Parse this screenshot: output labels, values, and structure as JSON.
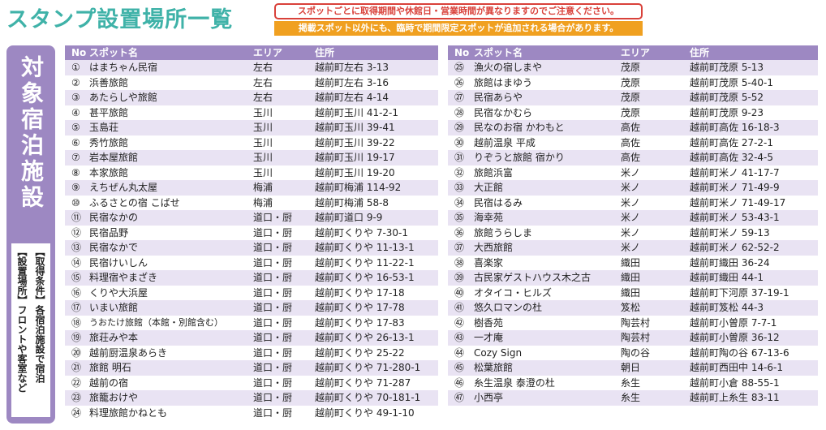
{
  "title": "スタンプ設置場所一覧",
  "notice": "スポットごとに取得期間や休館日・営業時間が異なりますのでご注意ください。",
  "banner": "掲載スポット以外にも、臨時で期間限定スポットが追加される場合があります。",
  "side": {
    "heading": "対象宿泊施設",
    "lines": [
      "【取得条件】各宿泊施設で宿泊",
      "【設置場所】フロントや客室など"
    ]
  },
  "tables": [
    {
      "header": [
        "No",
        "スポット名",
        "エリア",
        "住所"
      ],
      "rows": [
        [
          "①",
          "はまちゃん民宿",
          "左右",
          "越前町左右 3-13"
        ],
        [
          "②",
          "浜善旅館",
          "左右",
          "越前町左右 3-16"
        ],
        [
          "③",
          "あたらしや旅館",
          "左右",
          "越前町左右 4-14"
        ],
        [
          "④",
          "甚平旅館",
          "玉川",
          "越前町玉川 41-2-1"
        ],
        [
          "⑤",
          "玉島荘",
          "玉川",
          "越前町玉川 39-41"
        ],
        [
          "⑥",
          "秀竹旅館",
          "玉川",
          "越前町玉川 39-22"
        ],
        [
          "⑦",
          "岩本屋旅館",
          "玉川",
          "越前町玉川 19-17"
        ],
        [
          "⑧",
          "本家旅館",
          "玉川",
          "越前町玉川 19-20"
        ],
        [
          "⑨",
          "えちぜん丸太屋",
          "梅浦",
          "越前町梅浦 114-92"
        ],
        [
          "⑩",
          "ふるさとの宿 こばせ",
          "梅浦",
          "越前町梅浦 58-8"
        ],
        [
          "⑪",
          "民宿なかの",
          "道口・厨",
          "越前町道口 9-9"
        ],
        [
          "⑫",
          "民宿品野",
          "道口・厨",
          "越前町くりや 7-30-1"
        ],
        [
          "⑬",
          "民宿なかで",
          "道口・厨",
          "越前町くりや 11-13-1"
        ],
        [
          "⑭",
          "民宿けいしん",
          "道口・厨",
          "越前町くりや 11-22-1"
        ],
        [
          "⑮",
          "料理宿やまざき",
          "道口・厨",
          "越前町くりや 16-53-1"
        ],
        [
          "⑯",
          "くりや大浜屋",
          "道口・厨",
          "越前町くりや 17-18"
        ],
        [
          "⑰",
          "いまい旅館",
          "道口・厨",
          "越前町くりや 17-78"
        ],
        [
          "⑱",
          "うおたけ旅館（本館・別館含む）",
          "道口・厨",
          "越前町くりや 17-83"
        ],
        [
          "⑲",
          "旅荘みや本",
          "道口・厨",
          "越前町くりや 26-13-1"
        ],
        [
          "⑳",
          "越前厨温泉あらき",
          "道口・厨",
          "越前町くりや 25-22"
        ],
        [
          "㉑",
          "旅館 明石",
          "道口・厨",
          "越前町くりや 71-280-1"
        ],
        [
          "㉒",
          "越前の宿",
          "道口・厨",
          "越前町くりや 71-287"
        ],
        [
          "㉓",
          "旅籠おけや",
          "道口・厨",
          "越前町くりや 70-181-1"
        ],
        [
          "㉔",
          "料理旅館かねとも",
          "道口・厨",
          "越前町くりや 49-1-10"
        ]
      ]
    },
    {
      "header": [
        "No",
        "スポット名",
        "エリア",
        "住所"
      ],
      "rows": [
        [
          "㉕",
          "漁火の宿しまや",
          "茂原",
          "越前町茂原 5-13"
        ],
        [
          "㉖",
          "旅館はまゆう",
          "茂原",
          "越前町茂原 5-40-1"
        ],
        [
          "㉗",
          "民宿あらや",
          "茂原",
          "越前町茂原 5-52"
        ],
        [
          "㉘",
          "民宿なかむら",
          "茂原",
          "越前町茂原 9-23"
        ],
        [
          "㉙",
          "民なのお宿 かわもと",
          "高佐",
          "越前町高佐 16-18-3"
        ],
        [
          "㉚",
          "越前温泉 平成",
          "高佐",
          "越前町高佐 27-2-1"
        ],
        [
          "㉛",
          "りぞうと旅館 宿かり",
          "高佐",
          "越前町高佐 32-4-5"
        ],
        [
          "㉜",
          "旅館浜富",
          "米ノ",
          "越前町米ノ 41-17-7"
        ],
        [
          "㉝",
          "大正館",
          "米ノ",
          "越前町米ノ 71-49-9"
        ],
        [
          "㉞",
          "民宿はるみ",
          "米ノ",
          "越前町米ノ 71-49-17"
        ],
        [
          "㉟",
          "海幸苑",
          "米ノ",
          "越前町米ノ 53-43-1"
        ],
        [
          "㊱",
          "旅館うらしま",
          "米ノ",
          "越前町米ノ 59-13"
        ],
        [
          "㊲",
          "大西旅館",
          "米ノ",
          "越前町米ノ 62-52-2"
        ],
        [
          "㊳",
          "喜楽家",
          "織田",
          "越前町織田 36-24"
        ],
        [
          "㊴",
          "古民家ゲストハウス木之古",
          "織田",
          "越前町織田 44-1"
        ],
        [
          "㊵",
          "オタイコ・ヒルズ",
          "織田",
          "越前町下河原 37-19-1"
        ],
        [
          "㊶",
          "悠久ロマンの杜",
          "笈松",
          "越前町笈松 44-3"
        ],
        [
          "㊷",
          "樹香苑",
          "陶芸村",
          "越前町小曽原 7-7-1"
        ],
        [
          "㊸",
          "一才庵",
          "陶芸村",
          "越前町小曽原 36-12"
        ],
        [
          "㊹",
          "Cozy Sign",
          "陶の谷",
          "越前町陶の谷 67-13-6"
        ],
        [
          "㊺",
          "松葉旅館",
          "朝日",
          "越前町西田中 14-6-1"
        ],
        [
          "㊻",
          "糸生温泉 泰澄の杜",
          "糸生",
          "越前町小倉 88-55-1"
        ],
        [
          "㊼",
          "小西亭",
          "糸生",
          "越前町上糸生 83-11"
        ]
      ]
    }
  ]
}
